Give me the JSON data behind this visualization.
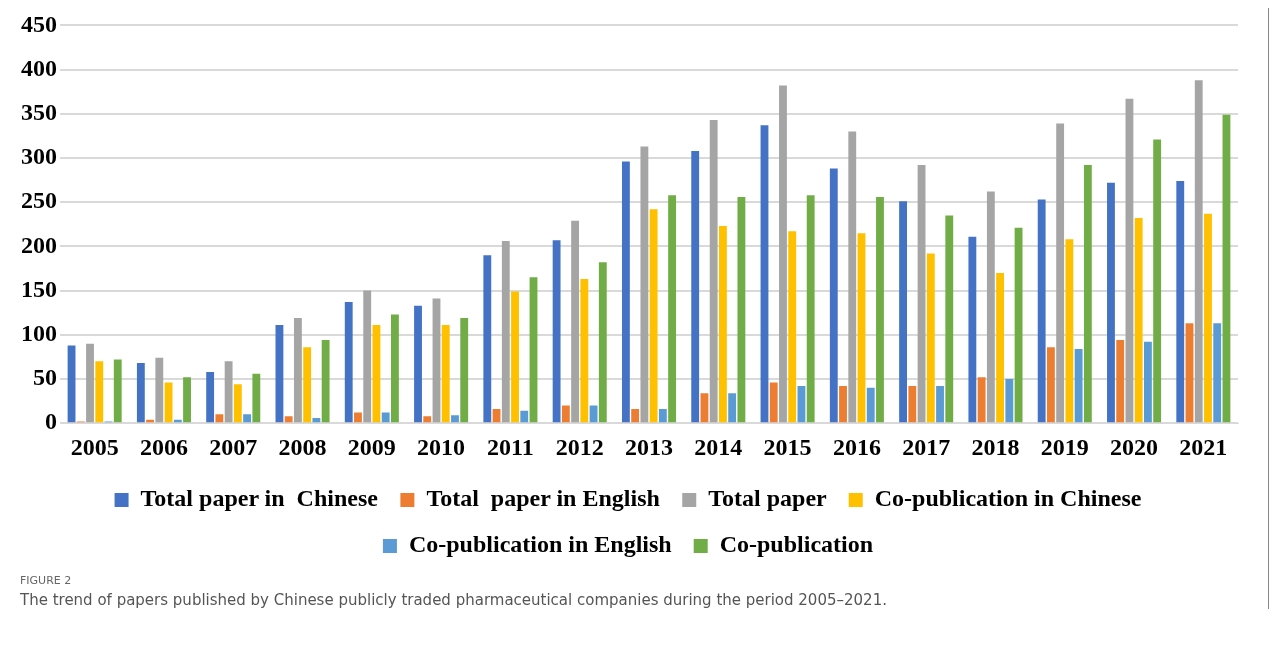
{
  "chart_data": {
    "type": "bar",
    "categories": [
      "2005",
      "2006",
      "2007",
      "2008",
      "2009",
      "2010",
      "2011",
      "2012",
      "2013",
      "2014",
      "2015",
      "2016",
      "2017",
      "2018",
      "2019",
      "2020",
      "2021"
    ],
    "series": [
      {
        "name": "Total paper in  Chinese",
        "color": "#4472c4",
        "values": [
          88,
          68,
          58,
          111,
          137,
          133,
          190,
          207,
          296,
          308,
          337,
          288,
          251,
          211,
          253,
          272,
          274
        ]
      },
      {
        "name": "Total  paper in English",
        "color": "#ed7d31",
        "values": [
          2,
          4,
          10,
          8,
          12,
          8,
          16,
          20,
          16,
          34,
          46,
          42,
          42,
          52,
          86,
          94,
          113
        ]
      },
      {
        "name": "Total paper",
        "color": "#a5a5a5",
        "values": [
          90,
          74,
          70,
          119,
          150,
          141,
          206,
          229,
          313,
          343,
          382,
          330,
          292,
          262,
          339,
          367,
          388
        ]
      },
      {
        "name": "Co-publication in Chinese",
        "color": "#ffc000",
        "values": [
          70,
          46,
          44,
          86,
          111,
          111,
          149,
          163,
          242,
          223,
          217,
          215,
          192,
          170,
          208,
          232,
          237
        ]
      },
      {
        "name": "Co-publication in English",
        "color": "#5b9bd5",
        "values": [
          2,
          4,
          10,
          6,
          12,
          9,
          14,
          20,
          16,
          34,
          42,
          40,
          42,
          50,
          84,
          92,
          113
        ]
      },
      {
        "name": "Co-publication",
        "color": "#70ad47",
        "values": [
          72,
          52,
          56,
          94,
          123,
          119,
          165,
          182,
          258,
          256,
          258,
          256,
          235,
          221,
          292,
          321,
          349
        ]
      }
    ],
    "ylim": [
      0,
      450
    ],
    "yticks": [
      0,
      50,
      100,
      150,
      200,
      250,
      300,
      350,
      400,
      450
    ],
    "grid": "y",
    "legend": "bottom",
    "annotations": [
      "FIGURE 2",
      "The trend of papers published by Chinese publicly traded pharmaceutical companies during the period 2005–2021."
    ]
  }
}
